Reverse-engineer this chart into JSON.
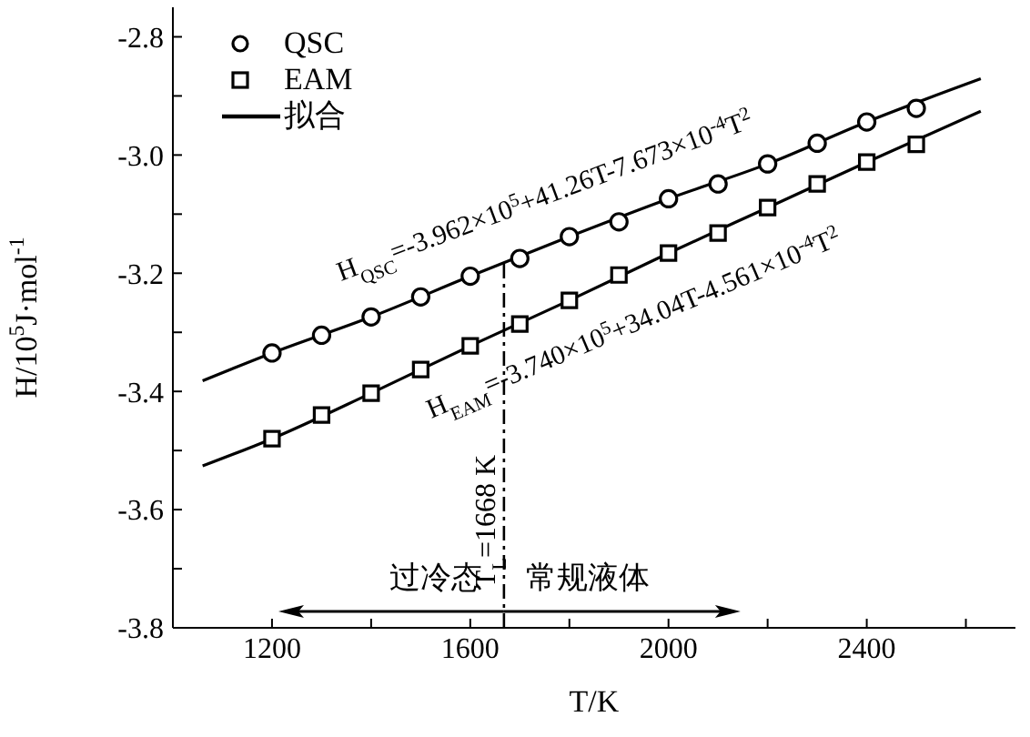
{
  "chart_data": {
    "type": "scatter",
    "xlabel": "T/K",
    "ylabel": "H/10$^{5}$J·mol$^{-1}$",
    "x": [
      1200,
      1300,
      1400,
      1500,
      1600,
      1700,
      1800,
      1900,
      2000,
      2100,
      2200,
      2300,
      2400,
      2500
    ],
    "series": [
      {
        "name": "QSC",
        "marker": "circle",
        "color": "#000000",
        "values": [
          -3.335,
          -3.305,
          -3.274,
          -3.24,
          -3.205,
          -3.175,
          -3.138,
          -3.113,
          -3.074,
          -3.049,
          -3.015,
          -2.98,
          -2.944,
          -2.921
        ]
      },
      {
        "name": "EAM",
        "marker": "square",
        "color": "#000000",
        "values": [
          -3.48,
          -3.44,
          -3.403,
          -3.363,
          -3.323,
          -3.286,
          -3.246,
          -3.203,
          -3.166,
          -3.132,
          -3.089,
          -3.049,
          -3.012,
          -2.982
        ]
      },
      {
        "name": "拟合",
        "type": "line",
        "marker": "none",
        "color": "#000000",
        "x": [
          1060,
          1200,
          1400,
          1600,
          1800,
          2000,
          2200,
          2400,
          2630
        ],
        "values": [
          -3.382,
          -3.335,
          -3.274,
          -3.205,
          -3.138,
          -3.074,
          -3.015,
          -2.944,
          -2.871
        ]
      },
      {
        "type": "line",
        "marker": "none",
        "color": "#000000",
        "x": [
          1060,
          1200,
          1400,
          1600,
          1800,
          2000,
          2200,
          2400,
          2630
        ],
        "values": [
          -3.526,
          -3.48,
          -3.403,
          -3.323,
          -3.246,
          -3.166,
          -3.089,
          -3.012,
          -2.926
        ]
      }
    ],
    "xlim": [
      1000,
      2700
    ],
    "xticks": [
      1200,
      {
        "value": 1400,
        "label": null
      },
      1600,
      {
        "value": 1800,
        "label": null
      },
      2000,
      {
        "value": 2200,
        "label": null
      },
      2400,
      {
        "value": 2600,
        "label": null
      }
    ],
    "ylim": [
      -3.8,
      -2.75
    ],
    "yticks": [
      -2.8,
      {
        "value": -2.9,
        "label": null
      },
      {
        "value": -3.0,
        "label": "-3.0"
      },
      {
        "value": -3.1,
        "label": null
      },
      -3.2,
      {
        "value": -3.3,
        "label": null
      },
      -3.4,
      {
        "value": -3.5,
        "label": null
      },
      -3.6,
      {
        "value": -3.7,
        "label": null
      },
      -3.8
    ],
    "ref_lines": [
      {
        "axis": "x",
        "value": 1668,
        "label": "T$_{L}$=1668 K",
        "line_style": "dashed",
        "color": "#000000"
      }
    ],
    "annotations": [
      "H$_{QSC}$=-3.962×10$^{5}$+41.26T-7.673×10$^{-4}$T$^{2}$",
      "H$_{EAM}$=-3.740×10$^{5}$+34.04T-4.561×10$^{-4}$T$^{2}$",
      "过冷态",
      "常规液体"
    ],
    "legend": "top left",
    "grid": false
  }
}
